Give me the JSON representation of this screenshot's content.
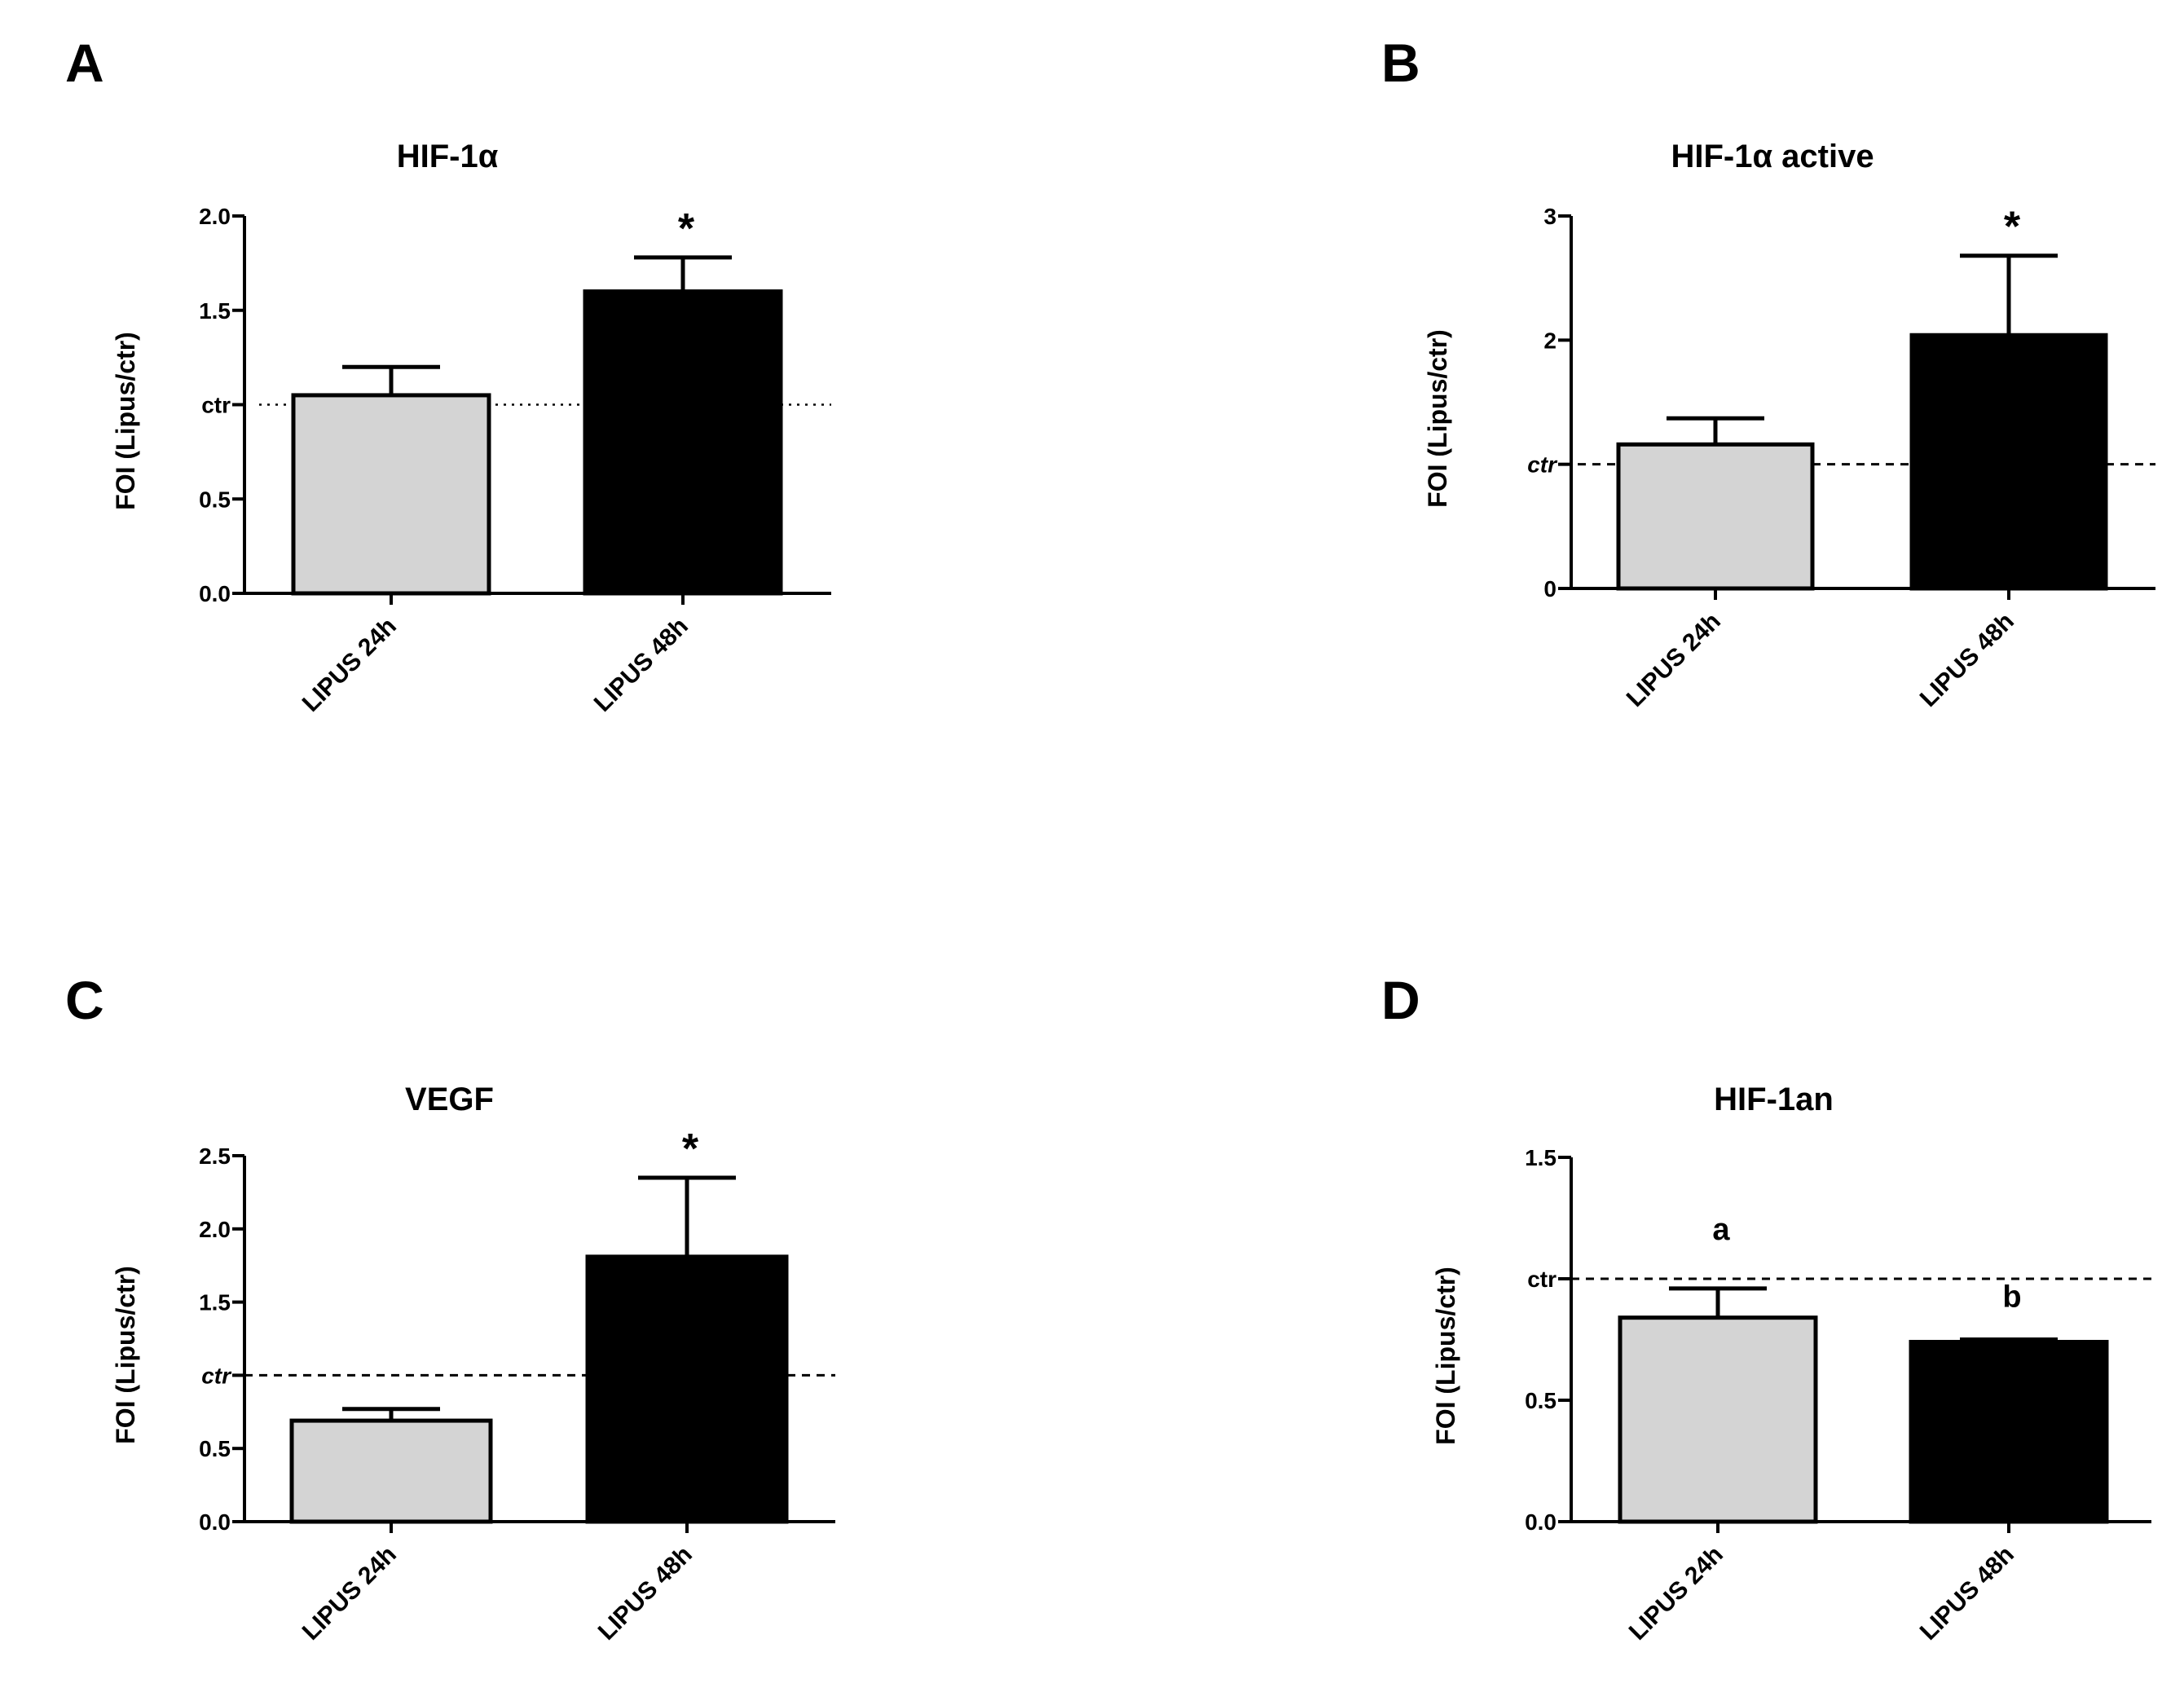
{
  "chart_data": [
    {
      "panel": "A",
      "type": "bar",
      "title": "HIF-1α",
      "ylabel": "FOI (Lipus/ctr)",
      "xlabel": "",
      "categories": [
        "LIPUS 24h",
        "LIPUS 48h"
      ],
      "values": [
        1.05,
        1.6
      ],
      "errors": [
        0.15,
        0.18
      ],
      "bar_colors": [
        "#d4d4d4",
        "#000000"
      ],
      "ylim": [
        0,
        2.0
      ],
      "yticks": [
        {
          "value": 0.0,
          "label": "0.0"
        },
        {
          "value": 0.5,
          "label": "0.5"
        },
        {
          "value": 1.0,
          "label": "ctr"
        },
        {
          "value": 1.5,
          "label": "1.5"
        },
        {
          "value": 2.0,
          "label": "2.0"
        }
      ],
      "reference_line": {
        "value": 1.0,
        "label": "ctr",
        "style": "dotted"
      },
      "annotations": [
        {
          "category": "LIPUS 48h",
          "text": "*"
        }
      ]
    },
    {
      "panel": "B",
      "type": "bar",
      "title": "HIF-1α active",
      "ylabel": "FOI (Lipus/ctr)",
      "xlabel": "",
      "categories": [
        "LIPUS 24h",
        "LIPUS 48h"
      ],
      "values": [
        1.16,
        2.04
      ],
      "errors": [
        0.21,
        0.64
      ],
      "bar_colors": [
        "#d4d4d4",
        "#000000"
      ],
      "ylim": [
        0,
        3
      ],
      "yticks": [
        {
          "value": 0,
          "label": "0"
        },
        {
          "value": 1,
          "label": "ctr"
        },
        {
          "value": 2,
          "label": "2"
        },
        {
          "value": 3,
          "label": "3"
        }
      ],
      "reference_line": {
        "value": 1.0,
        "label": "ctr",
        "style": "dashed"
      },
      "annotations": [
        {
          "category": "LIPUS 48h",
          "text": "*"
        }
      ]
    },
    {
      "panel": "C",
      "type": "bar",
      "title": "VEGF",
      "ylabel": "FOI (Lipus/ctr)",
      "xlabel": "",
      "categories": [
        "LIPUS 24h",
        "LIPUS 48h"
      ],
      "values": [
        0.69,
        1.81
      ],
      "errors": [
        0.08,
        0.54
      ],
      "bar_colors": [
        "#d4d4d4",
        "#000000"
      ],
      "ylim": [
        0,
        2.5
      ],
      "yticks": [
        {
          "value": 0.0,
          "label": "0.0"
        },
        {
          "value": 0.5,
          "label": "0.5"
        },
        {
          "value": 1.0,
          "label": "ctr"
        },
        {
          "value": 1.5,
          "label": "1.5"
        },
        {
          "value": 2.0,
          "label": "2.0"
        },
        {
          "value": 2.5,
          "label": "2.5"
        }
      ],
      "reference_line": {
        "value": 1.0,
        "label": "ctr",
        "style": "dashed"
      },
      "annotations": [
        {
          "category": "LIPUS 48h",
          "text": "*"
        }
      ]
    },
    {
      "panel": "D",
      "type": "bar",
      "title": "HIF-1an",
      "ylabel": "FOI (Lipus/ctr)",
      "xlabel": "",
      "categories": [
        "LIPUS 24h",
        "LIPUS 48h"
      ],
      "values": [
        0.84,
        0.74
      ],
      "errors": [
        0.12,
        0.01
      ],
      "bar_colors": [
        "#d4d4d4",
        "#000000"
      ],
      "ylim": [
        0,
        1.5
      ],
      "yticks": [
        {
          "value": 0.0,
          "label": "0.0"
        },
        {
          "value": 0.5,
          "label": "0.5"
        },
        {
          "value": 1.0,
          "label": "ctr"
        },
        {
          "value": 1.5,
          "label": "1.5"
        }
      ],
      "reference_line": {
        "value": 1.0,
        "label": "ctr",
        "style": "dashed"
      },
      "annotations": [
        {
          "category": "LIPUS 24h",
          "text": "a"
        },
        {
          "category": "LIPUS 48h",
          "text": "b"
        }
      ]
    }
  ]
}
